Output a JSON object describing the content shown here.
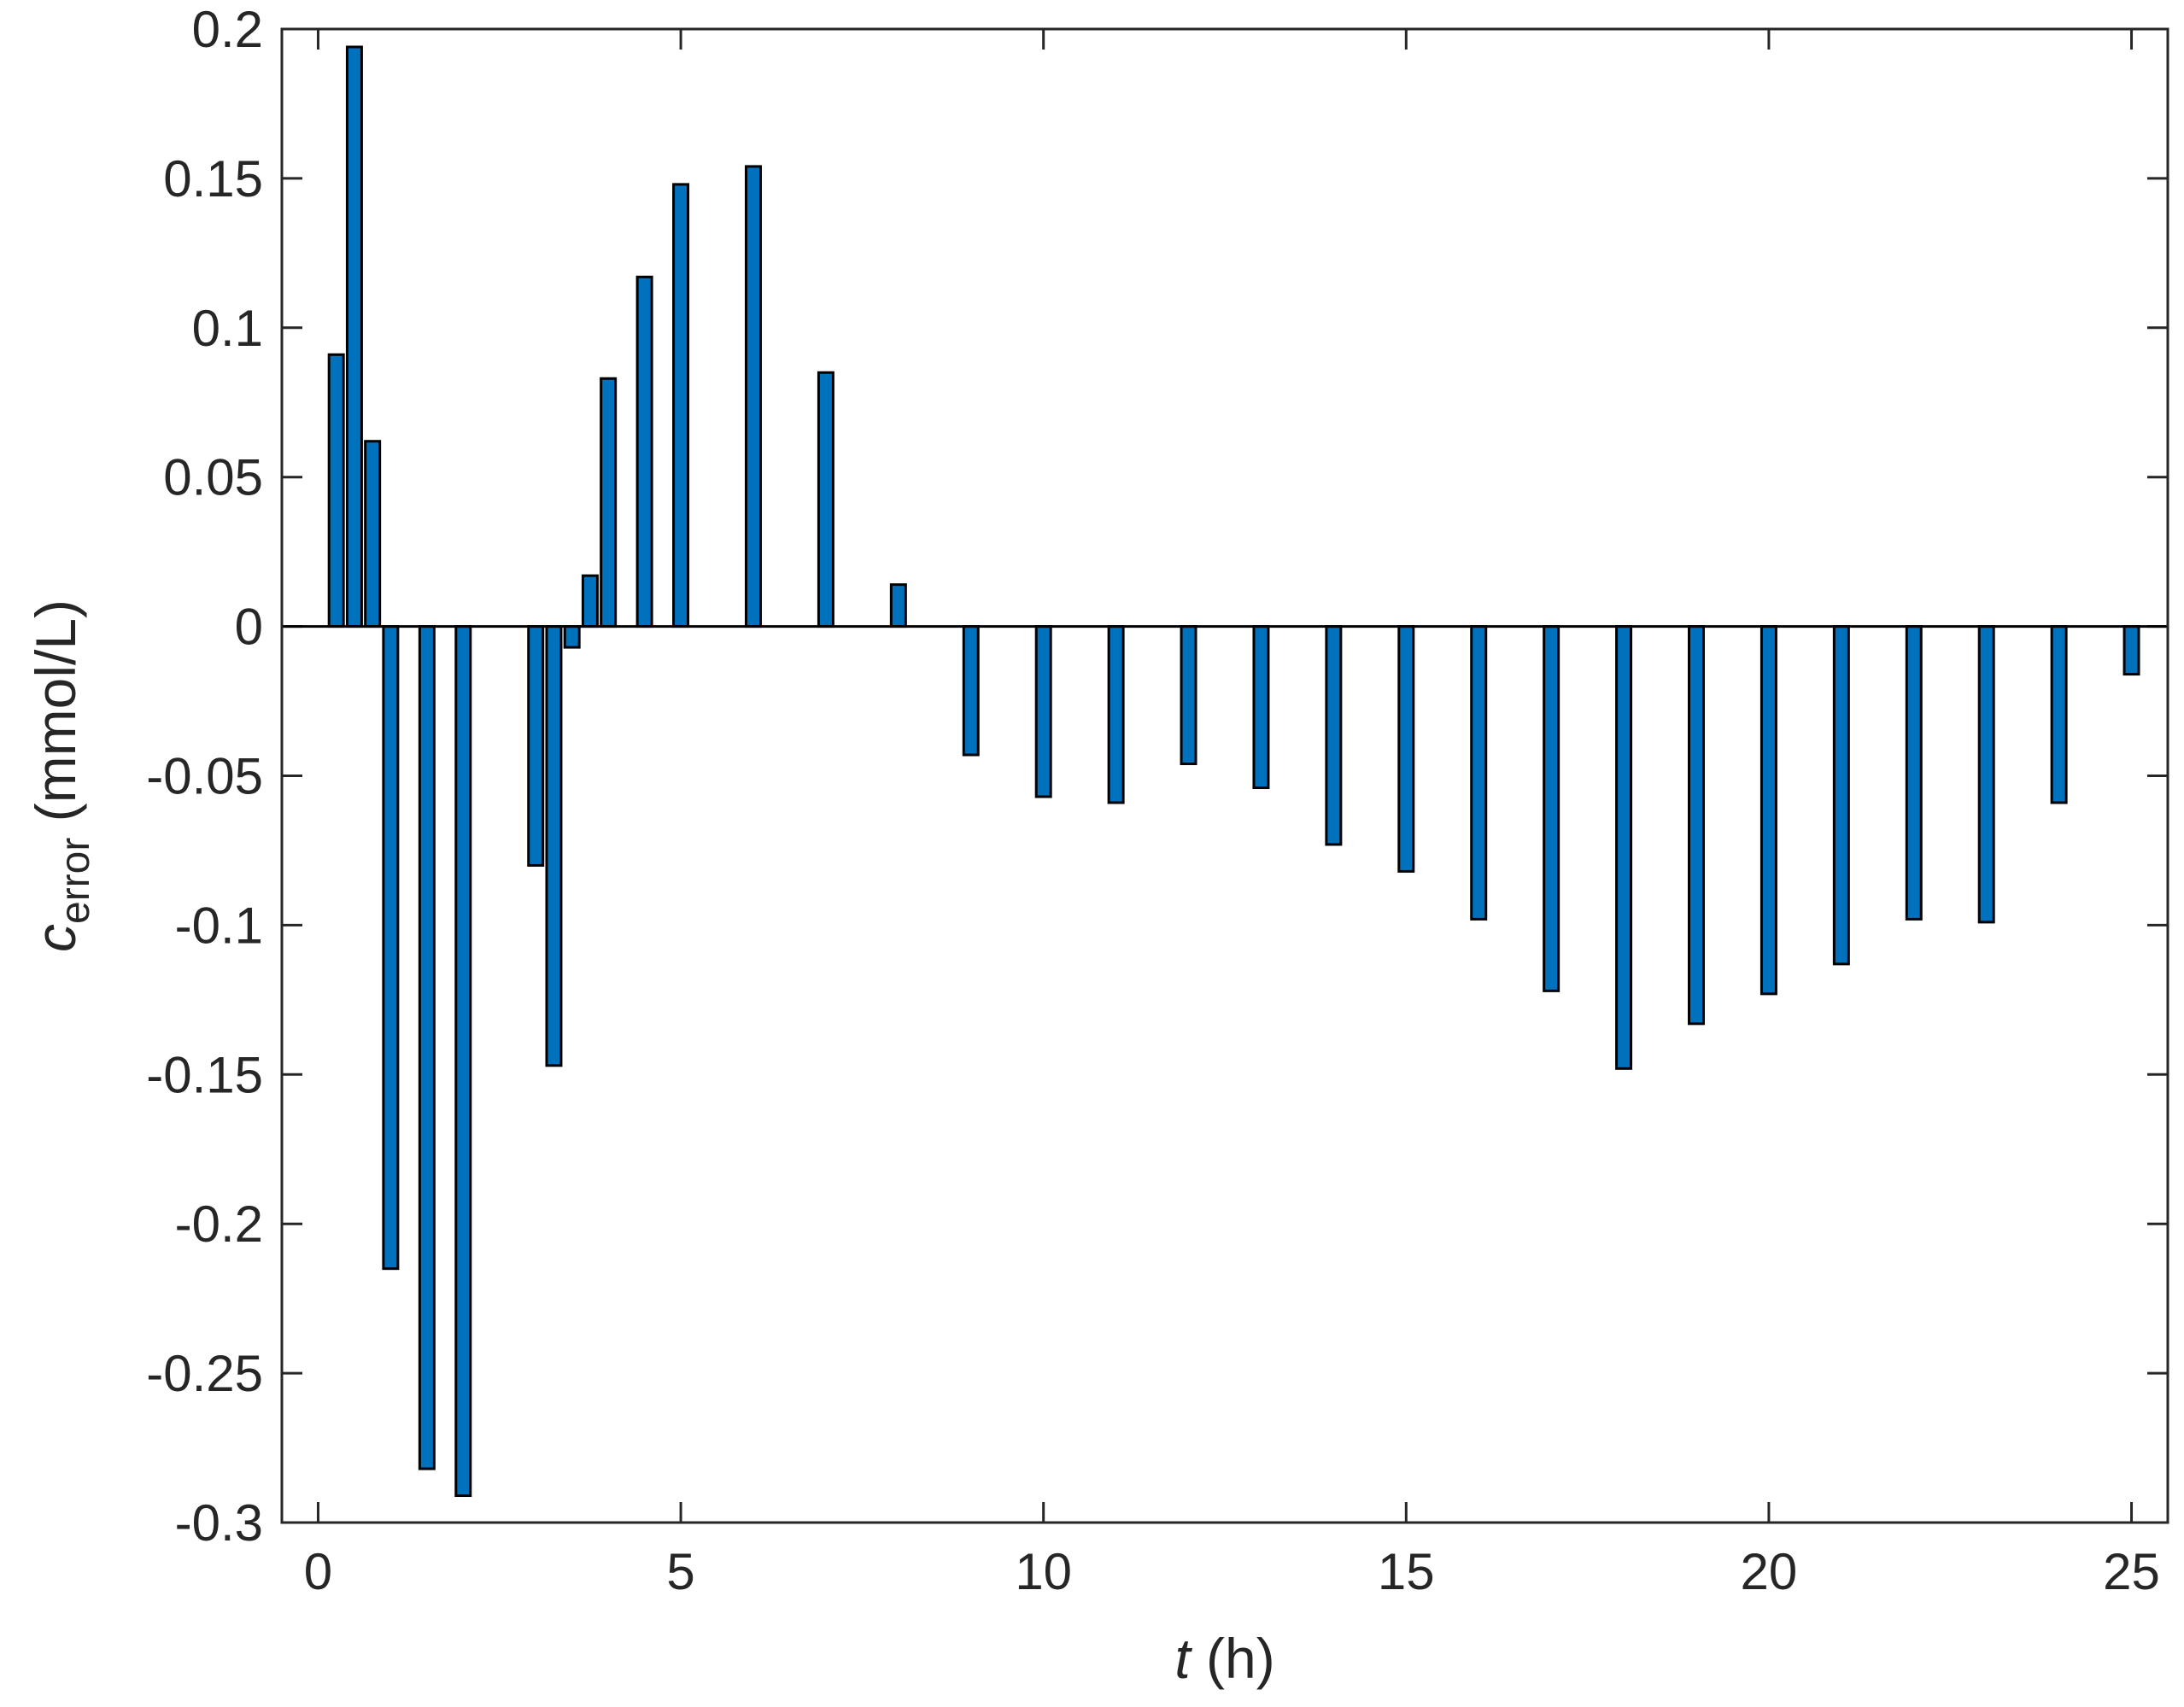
{
  "chart_data": {
    "type": "bar",
    "title": "",
    "xlabel": {
      "var": "t",
      "unit": " (h)"
    },
    "ylabel": {
      "var": "c",
      "sub": "error",
      "unit": " (mmol/L)"
    },
    "xlim": [
      -0.5,
      25.5
    ],
    "ylim": [
      -0.3,
      0.2
    ],
    "xticks": [
      0,
      5,
      10,
      15,
      20,
      25
    ],
    "xtick_labels": [
      "0",
      "5",
      "10",
      "15",
      "20",
      "25"
    ],
    "yticks": [
      0.2,
      0.15,
      0.1,
      0.05,
      0,
      -0.05,
      -0.1,
      -0.15,
      -0.2,
      -0.25,
      -0.3
    ],
    "ytick_labels": [
      "0.2",
      "0.15",
      "0.1",
      "0.05",
      "0",
      "-0.05",
      "-0.1",
      "-0.15",
      "-0.2",
      "-0.25",
      "-0.3"
    ],
    "grid": false,
    "bar_width_hours": 0.2,
    "bar_color": "#0072BD",
    "edge_color": "#000000",
    "series": [
      {
        "x": [
          0.25,
          0.5,
          0.75,
          1.0,
          1.5,
          2.0,
          3.0,
          3.25,
          3.5,
          3.75,
          4.0,
          4.5,
          5.0,
          6.0,
          7.0,
          8.0,
          9.0,
          10.0,
          11.0,
          12.0,
          13.0,
          14.0,
          15.0,
          16.0,
          17.0,
          18.0,
          19.0,
          20.0,
          21.0,
          22.0,
          23.0,
          24.0,
          25.0
        ],
        "values": [
          0.091,
          0.194,
          0.062,
          -0.215,
          -0.282,
          -0.291,
          -0.08,
          -0.147,
          -0.007,
          0.017,
          0.083,
          0.117,
          0.148,
          0.154,
          0.085,
          0.014,
          -0.043,
          -0.057,
          -0.059,
          -0.046,
          -0.054,
          -0.073,
          -0.082,
          -0.098,
          -0.122,
          -0.148,
          -0.133,
          -0.123,
          -0.113,
          -0.098,
          -0.099,
          -0.059,
          -0.016
        ]
      }
    ]
  }
}
